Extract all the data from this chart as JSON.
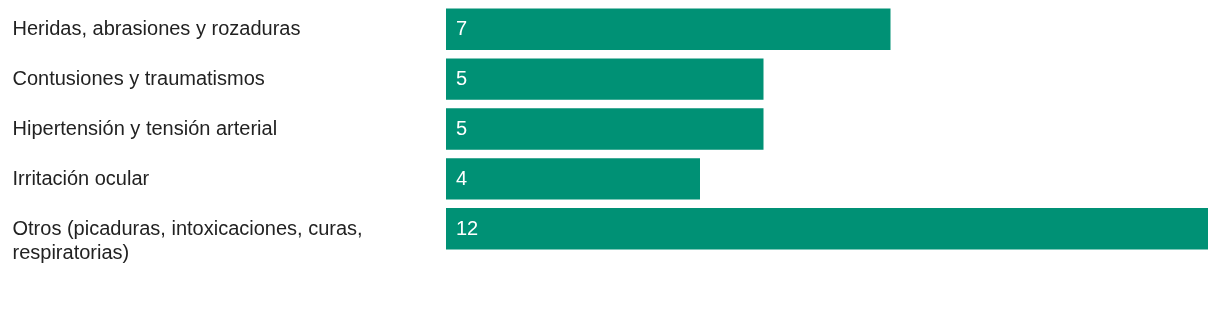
{
  "chart_data": {
    "type": "bar",
    "orientation": "horizontal",
    "categories": [
      "Heridas, abrasiones y rozaduras",
      "Contusiones y traumatismos",
      "Hipertensión y tensión arterial",
      "Irritación ocular",
      "Otros (picaduras, intoxicaciones, curas, respiratorias)"
    ],
    "values": [
      7,
      5,
      5,
      4,
      12
    ],
    "color": "#009175",
    "xlim": [
      0,
      12
    ],
    "data_labels": true,
    "grid": false
  }
}
